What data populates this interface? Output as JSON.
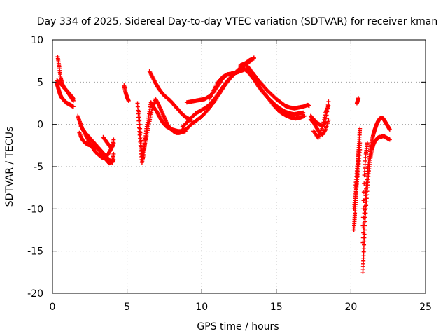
{
  "chart_data": {
    "type": "scatter",
    "title": "Day 334 of 2025, Sidereal Day-to-day VTEC variation (SDTVAR) for receiver kman",
    "xlabel": "GPS time / hours",
    "ylabel": "SDTVAR / TECUs",
    "xlim": [
      0,
      25
    ],
    "ylim": [
      -20,
      10
    ],
    "xticks": [
      0,
      5,
      10,
      15,
      20,
      25
    ],
    "yticks": [
      -20,
      -15,
      -10,
      -5,
      0,
      5,
      10
    ],
    "grid": true,
    "marker": "+",
    "series": [
      {
        "name": "SDTVAR",
        "color": "#ff0000",
        "tracks": [
          {
            "x": [
              0.3,
              0.4,
              0.5,
              0.6,
              0.7,
              0.8,
              0.9,
              1.0,
              1.1,
              1.2,
              1.3,
              1.4
            ],
            "y": [
              4.8,
              4.2,
              3.6,
              3.2,
              3.0,
              2.8,
              2.6,
              2.5,
              2.4,
              2.3,
              2.2,
              2.1
            ]
          },
          {
            "x": [
              0.35,
              0.45,
              0.55,
              0.65,
              0.8,
              0.95,
              1.1,
              1.25,
              1.4
            ],
            "y": [
              8.0,
              6.8,
              5.5,
              4.8,
              4.3,
              4.0,
              3.6,
              3.2,
              2.8
            ]
          },
          {
            "x": [
              0.3,
              0.5,
              0.7,
              0.9,
              1.1,
              1.3,
              1.4
            ],
            "y": [
              5.2,
              4.9,
              4.5,
              4.1,
              3.7,
              3.3,
              3.0
            ]
          },
          {
            "x": [
              1.7,
              1.85,
              2.0,
              2.2,
              2.4,
              2.6,
              2.8,
              3.0,
              3.2,
              3.4,
              3.6,
              3.8,
              4.0,
              4.1
            ],
            "y": [
              1.0,
              0.2,
              -0.5,
              -1.0,
              -1.4,
              -1.8,
              -2.2,
              -2.6,
              -3.0,
              -3.4,
              -3.8,
              -4.2,
              -4.5,
              -4.2
            ]
          },
          {
            "x": [
              1.8,
              2.0,
              2.2,
              2.4,
              2.6,
              2.8,
              3.0,
              3.2,
              3.4,
              3.6,
              3.8,
              4.0,
              4.1
            ],
            "y": [
              -1.0,
              -1.8,
              -2.2,
              -2.4,
              -2.5,
              -2.6,
              -2.8,
              -3.2,
              -3.7,
              -4.2,
              -4.6,
              -4.4,
              -3.5
            ]
          },
          {
            "x": [
              1.9,
              2.1,
              2.3,
              2.5,
              2.7,
              2.9,
              3.1,
              3.3,
              3.5,
              3.7,
              3.9,
              4.1
            ],
            "y": [
              -0.2,
              -0.8,
              -1.5,
              -2.2,
              -2.8,
              -3.3,
              -3.6,
              -3.9,
              -4.0,
              -3.6,
              -3.0,
              -2.2
            ]
          },
          {
            "x": [
              3.4,
              3.6,
              3.8,
              4.0,
              4.1
            ],
            "y": [
              -1.5,
              -2.0,
              -2.5,
              -2.8,
              -1.8
            ]
          },
          {
            "x": [
              4.8,
              4.9,
              5.0,
              5.1
            ],
            "y": [
              4.6,
              3.8,
              3.2,
              2.8
            ]
          },
          {
            "x": [
              5.7,
              5.8,
              5.9,
              6.0,
              6.1,
              6.2,
              6.3,
              6.45,
              6.6,
              6.8,
              7.0,
              7.2,
              7.4,
              7.6,
              7.8,
              8.0,
              8.2,
              8.4,
              8.6,
              8.8
            ],
            "y": [
              2.5,
              0.0,
              -2.5,
              -4.5,
              -3.6,
              -2.2,
              -0.5,
              1.0,
              2.6,
              2.0,
              1.5,
              0.8,
              0.2,
              -0.2,
              -0.4,
              -0.6,
              -0.7,
              -0.8,
              -0.8,
              -0.6
            ]
          },
          {
            "x": [
              5.8,
              5.9,
              6.0,
              6.1,
              6.25,
              6.4,
              6.55,
              6.7,
              6.9,
              7.1,
              7.3,
              7.5,
              7.7,
              7.9,
              8.1,
              8.3,
              8.5,
              8.7,
              8.9
            ],
            "y": [
              1.5,
              -1.5,
              -3.8,
              -3.0,
              -1.8,
              -0.5,
              0.8,
              2.0,
              3.0,
              2.4,
              1.6,
              0.8,
              0.0,
              -0.5,
              -0.8,
              -1.0,
              -1.0,
              -0.9,
              -0.8
            ]
          },
          {
            "x": [
              6.5,
              6.7,
              6.9,
              7.1,
              7.3,
              7.5,
              7.7,
              7.9,
              8.1,
              8.3,
              8.5,
              8.7,
              8.9,
              9.1,
              9.3
            ],
            "y": [
              6.3,
              5.6,
              4.9,
              4.3,
              3.8,
              3.4,
              3.1,
              2.8,
              2.4,
              2.0,
              1.6,
              1.2,
              0.9,
              0.7,
              0.5
            ]
          },
          {
            "x": [
              8.7,
              9.0,
              9.3,
              9.6,
              9.9,
              10.2,
              10.5,
              10.8,
              11.1,
              11.4,
              11.7,
              12.0,
              12.3,
              12.6,
              12.9,
              13.2,
              13.5
            ],
            "y": [
              -0.8,
              -0.5,
              0.0,
              0.4,
              0.8,
              1.3,
              1.9,
              2.6,
              3.4,
              4.2,
              5.0,
              5.6,
              6.2,
              6.6,
              7.0,
              7.4,
              7.9
            ]
          },
          {
            "x": [
              8.7,
              9.0,
              9.3,
              9.6,
              9.9,
              10.2,
              10.5,
              10.8,
              11.1,
              11.4,
              11.7,
              12.0,
              12.3,
              12.6,
              12.9,
              13.2,
              13.5
            ],
            "y": [
              -0.3,
              0.2,
              0.8,
              1.3,
              1.6,
              1.9,
              2.3,
              2.9,
              3.6,
              4.4,
              5.1,
              5.7,
              6.2,
              6.7,
              7.2,
              7.6,
              7.8
            ]
          },
          {
            "x": [
              9.0,
              9.3,
              9.6,
              9.9,
              10.2,
              10.5,
              10.8,
              11.1,
              11.4,
              11.7,
              12.0,
              12.3,
              12.6,
              12.9
            ],
            "y": [
              2.6,
              2.7,
              2.8,
              2.9,
              3.0,
              3.3,
              3.8,
              4.6,
              5.4,
              5.9,
              6.0,
              6.1,
              6.3,
              6.5
            ]
          },
          {
            "x": [
              10.5,
              10.8,
              11.1,
              11.4,
              11.7,
              12.0,
              12.3
            ],
            "y": [
              3.0,
              4.0,
              5.0,
              5.6,
              5.9,
              6.0,
              6.1
            ]
          },
          {
            "x": [
              12.6,
              12.9,
              13.2,
              13.5,
              13.8,
              14.1,
              14.4,
              14.7,
              15.0,
              15.3,
              15.6,
              15.9,
              16.2,
              16.5,
              16.8,
              17.1,
              17.2
            ],
            "y": [
              7.0,
              7.2,
              6.6,
              5.9,
              5.2,
              4.6,
              4.0,
              3.5,
              3.0,
              2.6,
              2.2,
              2.0,
              1.9,
              2.0,
              2.1,
              2.3,
              2.2
            ]
          },
          {
            "x": [
              12.6,
              12.9,
              13.2,
              13.5,
              13.8,
              14.1,
              14.4,
              14.7,
              15.0,
              15.3,
              15.6,
              15.9,
              16.2,
              16.5,
              16.8
            ],
            "y": [
              6.8,
              6.5,
              6.0,
              5.3,
              4.5,
              3.8,
              3.2,
              2.7,
              2.2,
              1.8,
              1.5,
              1.3,
              1.2,
              1.3,
              1.4
            ]
          },
          {
            "x": [
              13.0,
              13.3,
              13.6,
              13.9,
              14.2,
              14.5,
              14.8,
              15.1,
              15.4,
              15.7,
              16.0,
              16.3,
              16.6,
              16.9
            ],
            "y": [
              6.5,
              6.0,
              5.2,
              4.4,
              3.7,
              3.0,
              2.3,
              1.7,
              1.3,
              1.0,
              0.8,
              0.7,
              0.8,
              1.0
            ]
          },
          {
            "x": [
              17.3,
              17.5,
              17.7,
              17.9,
              18.1,
              18.3,
              18.5
            ],
            "y": [
              0.6,
              0.2,
              -0.4,
              -1.0,
              -1.2,
              -0.6,
              0.5
            ]
          },
          {
            "x": [
              17.3,
              17.5,
              17.7,
              17.9,
              18.1,
              18.3,
              18.5
            ],
            "y": [
              1.0,
              0.6,
              0.2,
              0.0,
              -0.2,
              0.3,
              2.7
            ]
          },
          {
            "x": [
              17.5,
              17.8,
              18.1,
              18.3,
              18.5
            ],
            "y": [
              -0.8,
              -1.6,
              -0.3,
              1.4,
              2.2
            ]
          },
          {
            "x": [
              20.2,
              20.25,
              20.3,
              20.35,
              20.4,
              20.45,
              20.5,
              20.55,
              20.6
            ],
            "y": [
              -12.5,
              -11.0,
              -9.5,
              -8.0,
              -6.5,
              -5.0,
              -3.5,
              -2.0,
              -0.5
            ]
          },
          {
            "x": [
              20.2,
              20.3,
              20.4,
              20.5,
              20.6
            ],
            "y": [
              -10.0,
              -8.5,
              -6.8,
              -5.0,
              -3.0
            ]
          },
          {
            "x": [
              20.3,
              20.4,
              20.5,
              20.6
            ],
            "y": [
              -7.5,
              -5.5,
              -3.8,
              -2.2
            ]
          },
          {
            "x": [
              20.4,
              20.5
            ],
            "y": [
              2.5,
              3.1
            ]
          },
          {
            "x": [
              20.8,
              20.85,
              20.9,
              21.0,
              21.1,
              21.2,
              21.3,
              21.4,
              21.5,
              21.6,
              21.7,
              21.8,
              21.9,
              22.0,
              22.1,
              22.2,
              22.3,
              22.4,
              22.5,
              22.6
            ],
            "y": [
              -17.5,
              -15.5,
              -13.0,
              -10.0,
              -7.5,
              -5.5,
              -4.0,
              -3.0,
              -2.4,
              -2.0,
              -1.8,
              -1.6,
              -1.5,
              -1.5,
              -1.4,
              -1.4,
              -1.5,
              -1.6,
              -1.7,
              -1.8
            ]
          },
          {
            "x": [
              20.8,
              20.9,
              21.0,
              21.1,
              21.2,
              21.3,
              21.4,
              21.5,
              21.6,
              21.7,
              21.8,
              21.9,
              22.0,
              22.1,
              22.2,
              22.3,
              22.4,
              22.5,
              22.6
            ],
            "y": [
              -14.0,
              -10.5,
              -8.0,
              -5.8,
              -4.2,
              -3.0,
              -2.0,
              -1.2,
              -0.6,
              -0.1,
              0.3,
              0.6,
              0.8,
              0.8,
              0.6,
              0.3,
              0.0,
              -0.3,
              -0.6
            ]
          },
          {
            "x": [
              20.8,
              20.9,
              21.0,
              21.1
            ],
            "y": [
              -12.0,
              -6.0,
              -3.5,
              -2.2
            ]
          }
        ]
      }
    ]
  }
}
